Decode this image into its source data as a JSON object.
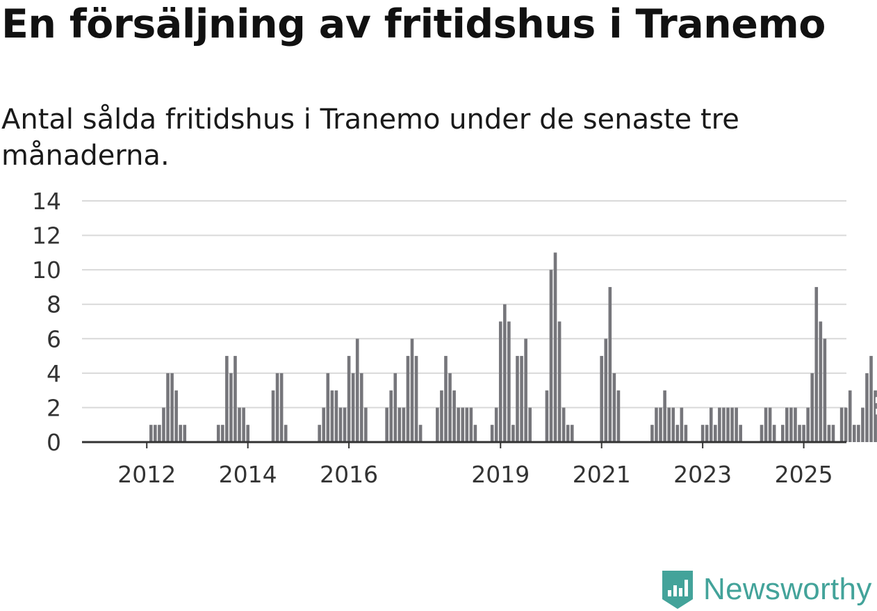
{
  "header": {
    "title": "En försäljning av fritidshus i Tranemo",
    "subtitle": "Antal sålda fritidshus i Tranemo under de senaste tre månaderna."
  },
  "brand": {
    "name": "Newsworthy",
    "color": "#43a39a"
  },
  "colors": {
    "bar": "#76767b",
    "highlight": "#16a394",
    "grid": "#d9d9d9",
    "axis": "#333333"
  },
  "chart_data": {
    "type": "bar",
    "x_tick_labels": [
      "2012",
      "2014",
      "2016",
      "2019",
      "2021",
      "2023",
      "2025"
    ],
    "x_tick_months": [
      7,
      31,
      55,
      91,
      115,
      139,
      163
    ],
    "ylim": [
      0,
      14
    ],
    "y_ticks": [
      0,
      2,
      4,
      6,
      8,
      10,
      12,
      14
    ],
    "grid": true,
    "highlight_label": "1",
    "values": [
      0,
      0,
      0,
      0,
      0,
      0,
      0,
      0,
      1,
      1,
      1,
      2,
      4,
      4,
      3,
      1,
      1,
      0,
      0,
      0,
      0,
      0,
      0,
      0,
      1,
      1,
      5,
      4,
      5,
      2,
      2,
      1,
      0,
      0,
      0,
      0,
      0,
      3,
      4,
      4,
      1,
      0,
      0,
      0,
      0,
      0,
      0,
      0,
      1,
      2,
      4,
      3,
      3,
      2,
      2,
      5,
      4,
      6,
      4,
      2,
      0,
      0,
      0,
      0,
      2,
      3,
      4,
      2,
      2,
      5,
      6,
      5,
      1,
      0,
      0,
      0,
      2,
      3,
      5,
      4,
      3,
      2,
      2,
      2,
      2,
      1,
      0,
      0,
      0,
      1,
      2,
      7,
      8,
      7,
      1,
      5,
      5,
      6,
      2,
      0,
      0,
      0,
      3,
      10,
      11,
      7,
      2,
      1,
      1,
      0,
      0,
      0,
      0,
      0,
      0,
      5,
      6,
      9,
      4,
      3,
      0,
      0,
      0,
      0,
      0,
      0,
      0,
      1,
      2,
      2,
      3,
      2,
      2,
      1,
      2,
      1,
      0,
      0,
      0,
      1,
      1,
      2,
      1,
      2,
      2,
      2,
      2,
      2,
      1,
      0,
      0,
      0,
      0,
      1,
      2,
      2,
      1,
      0,
      1,
      2,
      2,
      2,
      1,
      1,
      2,
      4,
      9,
      7,
      6,
      1,
      1,
      0,
      2,
      2,
      3,
      1,
      1,
      2,
      4,
      5,
      3,
      1,
      1
    ]
  }
}
